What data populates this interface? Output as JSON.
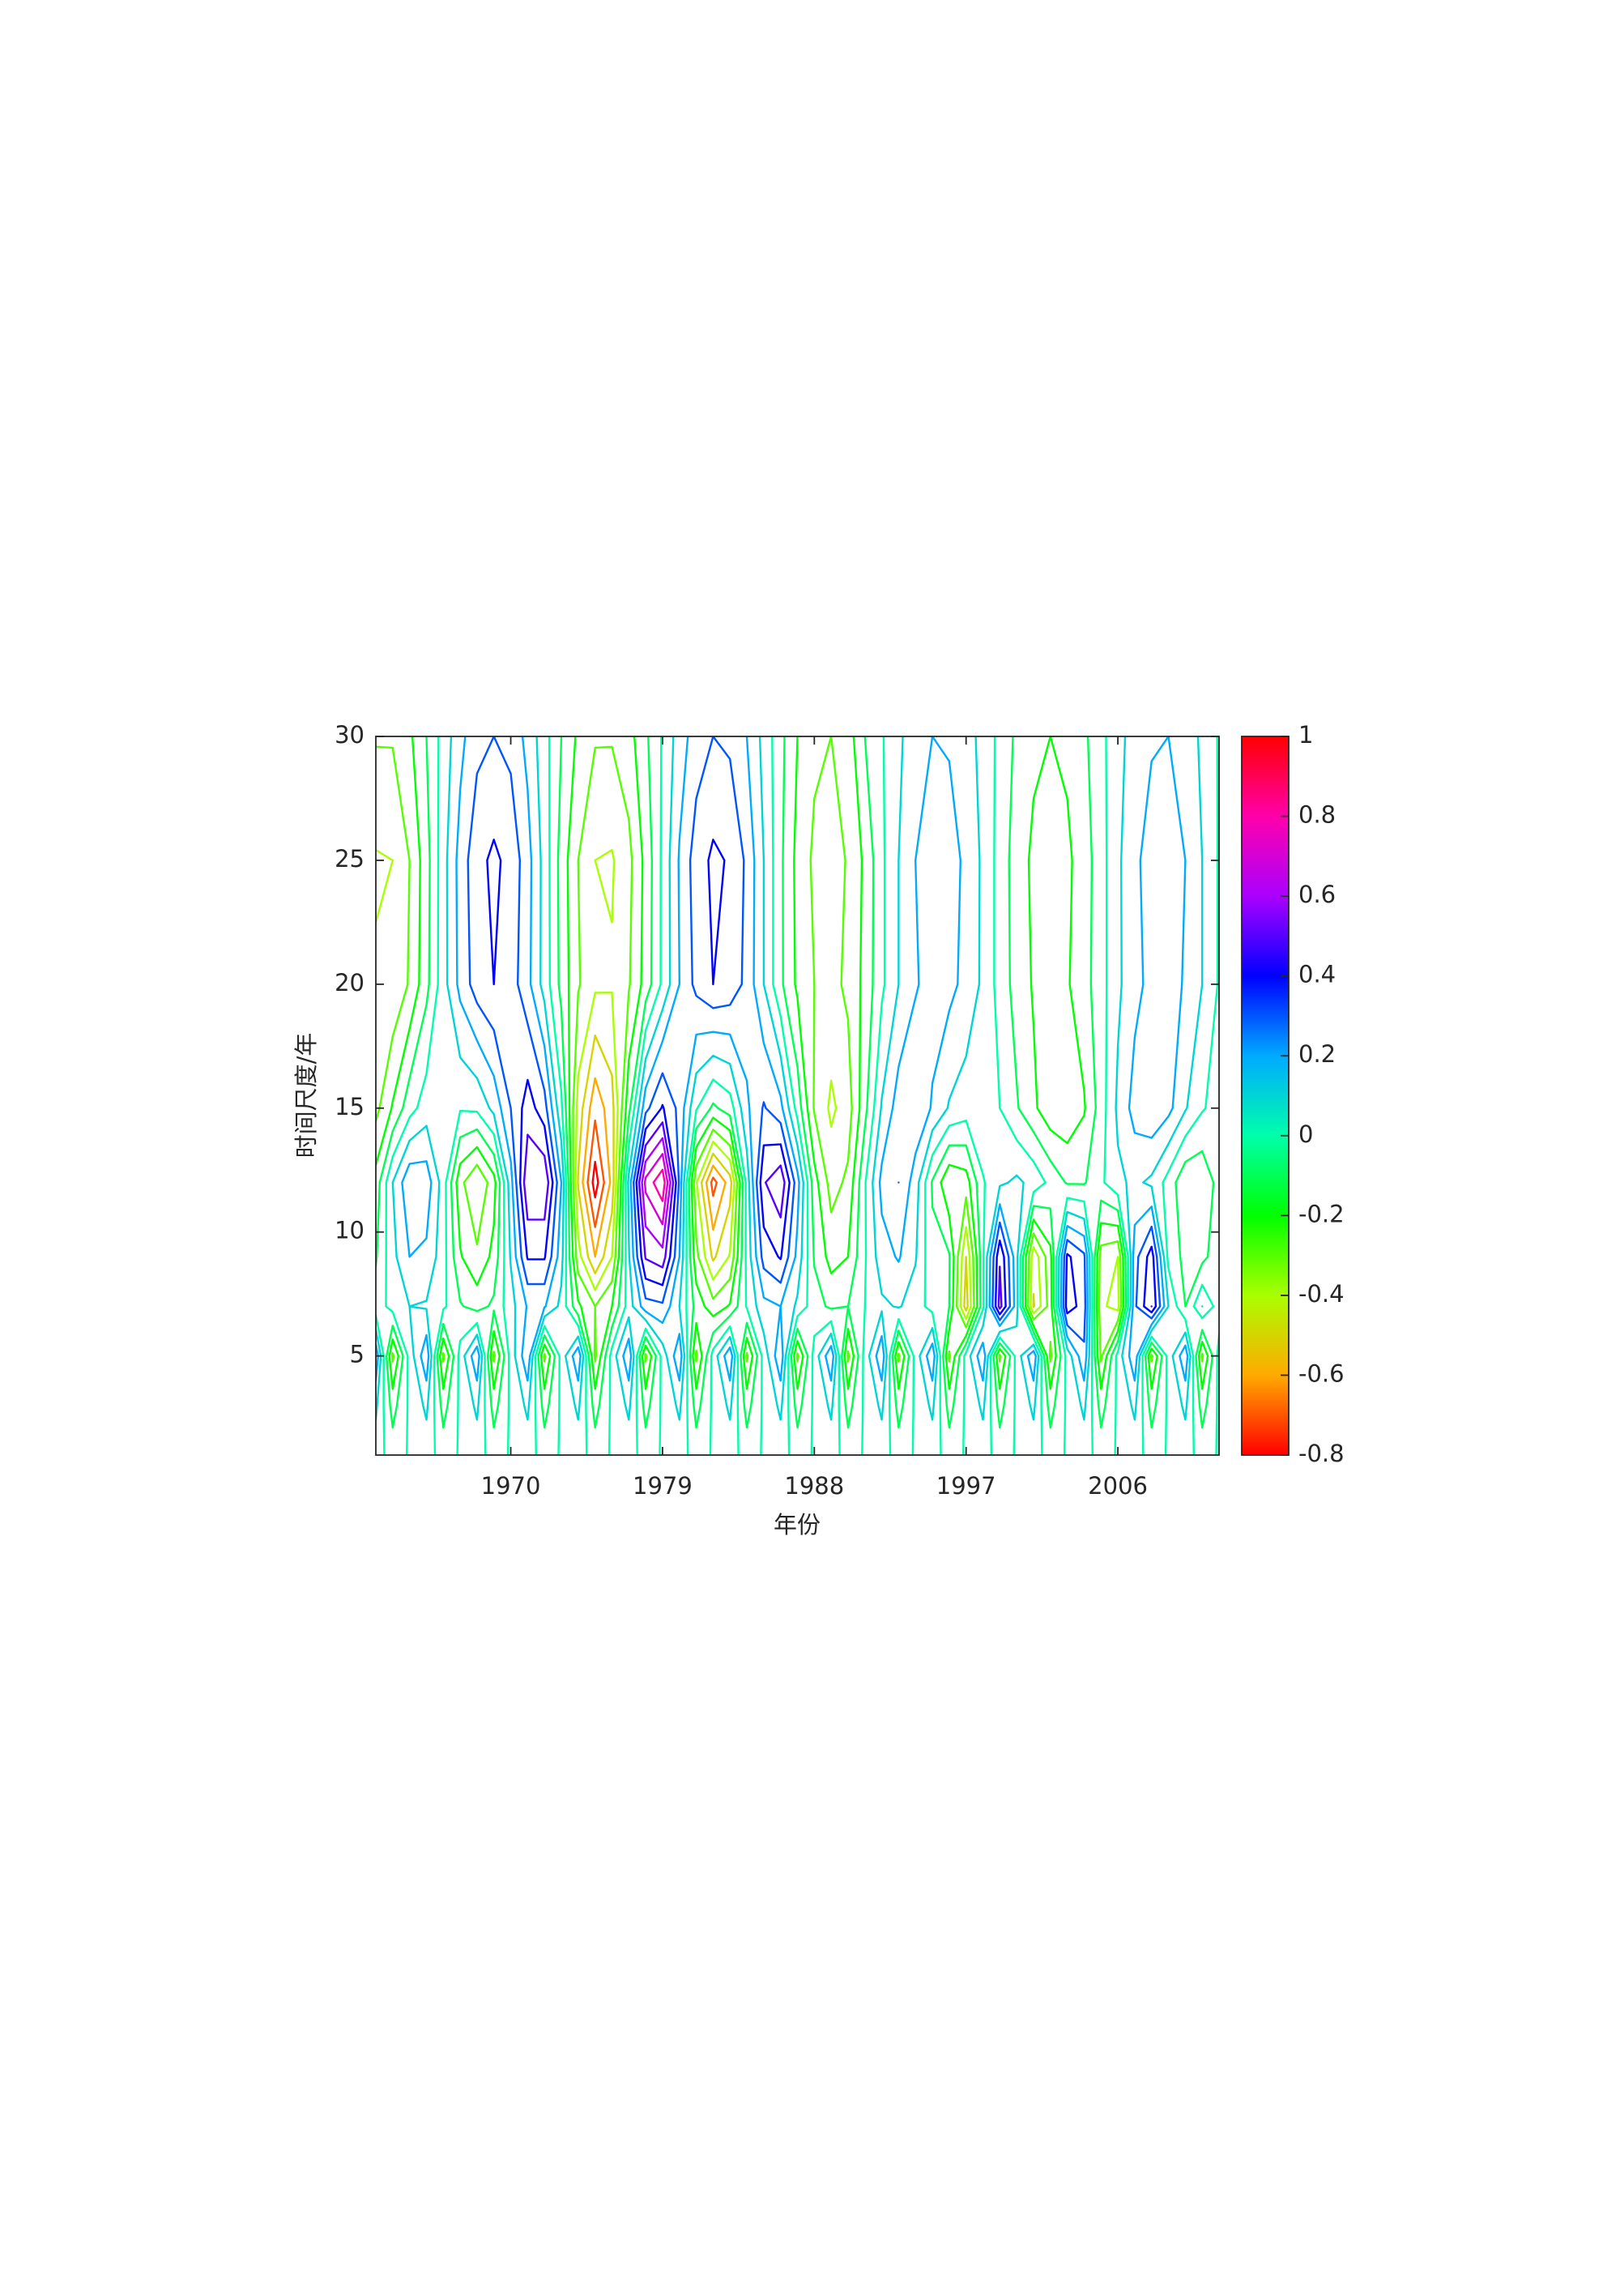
{
  "chart_data": {
    "type": "contour",
    "xlabel": "年份",
    "ylabel": "时间尺度/年",
    "xlim": [
      1962,
      2012
    ],
    "ylim": [
      1,
      30
    ],
    "xticks": [
      1970,
      1979,
      1988,
      1997,
      2006
    ],
    "yticks": [
      5,
      10,
      15,
      20,
      25,
      30
    ],
    "clim": [
      -0.8,
      1
    ],
    "colorbar_ticks": [
      -0.8,
      -0.6,
      -0.4,
      -0.2,
      0,
      0.2,
      0.4,
      0.6,
      0.8,
      1
    ],
    "colormap": [
      "#ff0000",
      "#ffaa00",
      "#aaff00",
      "#00ff00",
      "#00ffaa",
      "#00aaff",
      "#0000ff",
      "#aa00ff",
      "#ff00aa",
      "#ff0000"
    ],
    "levels": [
      -0.8,
      -0.7,
      -0.6,
      -0.5,
      -0.4,
      -0.3,
      -0.2,
      -0.1,
      0,
      0.1,
      0.2,
      0.3,
      0.4,
      0.5,
      0.6,
      0.7,
      0.8
    ],
    "x": [
      1962,
      1963,
      1964,
      1965,
      1966,
      1967,
      1968,
      1969,
      1970,
      1971,
      1972,
      1973,
      1974,
      1975,
      1976,
      1977,
      1978,
      1979,
      1980,
      1981,
      1982,
      1983,
      1984,
      1985,
      1986,
      1987,
      1988,
      1989,
      1990,
      1991,
      1992,
      1993,
      1994,
      1995,
      1996,
      1997,
      1998,
      1999,
      2000,
      2001,
      2002,
      2003,
      2004,
      2005,
      2006,
      2007,
      2008,
      2009,
      2010,
      2011,
      2012
    ],
    "y": [
      1,
      3,
      5,
      7,
      9,
      12,
      15,
      20,
      25,
      30
    ],
    "z": [
      [
        0.05,
        -0.05,
        0.01,
        0.05,
        -0.05,
        0.01,
        0.05,
        -0.05,
        0.01,
        0.05,
        -0.05,
        0.01,
        0.05,
        -0.05,
        0.01,
        0.05,
        -0.05,
        0.01,
        0.05,
        -0.05,
        0.01,
        0.05,
        -0.05,
        0.01,
        0.05,
        -0.05,
        0.01,
        0.05,
        -0.05,
        0.01,
        0.05,
        -0.05,
        0.01,
        0.05,
        -0.05,
        0.01,
        0.05,
        -0.05,
        0.01,
        0.05,
        -0.05,
        0.01,
        0.05,
        -0.05,
        0.01,
        0.05,
        -0.05,
        0.01,
        0.05,
        -0.05,
        0.01
      ],
      [
        0.12,
        -0.14,
        0.02,
        0.12,
        -0.14,
        0.02,
        0.12,
        -0.14,
        0.02,
        0.12,
        -0.14,
        0.02,
        0.12,
        -0.14,
        0.02,
        0.12,
        -0.14,
        0.02,
        0.12,
        -0.14,
        0.02,
        0.12,
        -0.14,
        0.02,
        0.12,
        -0.14,
        0.02,
        0.12,
        -0.14,
        0.02,
        0.12,
        -0.14,
        0.02,
        0.12,
        -0.14,
        0.02,
        0.12,
        -0.14,
        0.02,
        0.12,
        -0.14,
        0.02,
        0.12,
        -0.14,
        0.02,
        0.12,
        -0.14,
        0.02,
        0.12,
        -0.14,
        0.02
      ],
      [
        0.28,
        -0.32,
        0.04,
        0.28,
        -0.32,
        0.04,
        0.28,
        -0.32,
        0.04,
        0.28,
        -0.32,
        0.04,
        0.28,
        -0.32,
        0.04,
        0.28,
        -0.32,
        0.04,
        0.28,
        -0.32,
        0.04,
        0.28,
        -0.32,
        0.04,
        0.28,
        -0.32,
        0.04,
        0.28,
        -0.32,
        0.04,
        0.28,
        -0.32,
        0.04,
        0.28,
        -0.32,
        0.04,
        0.28,
        -0.32,
        0.04,
        0.28,
        -0.32,
        0.04,
        0.28,
        -0.32,
        0.04,
        0.28,
        -0.32,
        0.04,
        0.28,
        -0.32,
        0.04
      ],
      [
        -0.06,
        0.04,
        0.1,
        0.09,
        0.02,
        -0.09,
        -0.14,
        -0.08,
        0.06,
        0.21,
        0.21,
        0.07,
        -0.18,
        -0.3,
        -0.2,
        0.05,
        0.26,
        0.28,
        0.1,
        -0.14,
        -0.26,
        -0.19,
        0.01,
        0.17,
        0.2,
        0.08,
        -0.06,
        -0.12,
        -0.1,
        0.0,
        0.08,
        0.11,
        0.05,
        -0.04,
        -0.1,
        -0.55,
        -0.02,
        0.54,
        0.14,
        -0.51,
        -0.25,
        0.46,
        0.35,
        -0.38,
        -0.44,
        0.28,
        0.5,
        0.1,
        -0.1,
        0.1,
        -0.05
      ],
      [
        -0.11,
        0.07,
        0.2,
        0.18,
        0.04,
        -0.19,
        -0.28,
        -0.17,
        0.11,
        0.41,
        0.41,
        0.14,
        -0.36,
        -0.6,
        -0.4,
        0.09,
        0.51,
        0.56,
        0.2,
        -0.27,
        -0.52,
        -0.39,
        0.03,
        0.34,
        0.41,
        0.17,
        -0.11,
        -0.24,
        -0.2,
        -0.01,
        0.16,
        0.21,
        0.11,
        -0.08,
        -0.09,
        -0.5,
        -0.02,
        0.49,
        0.13,
        -0.47,
        -0.23,
        0.42,
        0.32,
        -0.35,
        -0.4,
        0.26,
        0.45,
        -0.03,
        -0.13,
        -0.13,
        -0.04
      ],
      [
        -0.16,
        0.1,
        0.28,
        0.26,
        0.05,
        -0.27,
        -0.4,
        -0.24,
        0.16,
        0.59,
        0.59,
        0.2,
        -0.51,
        -0.85,
        -0.57,
        0.13,
        0.73,
        0.88,
        0.28,
        -0.39,
        -0.74,
        -0.55,
        0.04,
        0.49,
        0.58,
        0.24,
        -0.16,
        -0.34,
        -0.28,
        -0.01,
        0.23,
        0.3,
        0.15,
        -0.11,
        -0.29,
        -0.25,
        -0.01,
        0.08,
        0.12,
        0.07,
        -0.03,
        -0.11,
        -0.11,
        -0.02,
        0.08,
        0.12,
        0.08,
        -0.04,
        -0.18,
        -0.18,
        -0.06
      ],
      [
        -0.33,
        -0.19,
        -0.04,
        0.05,
        0.07,
        0.01,
        0.02,
        0.13,
        0.3,
        0.45,
        0.34,
        0.02,
        -0.44,
        -0.67,
        -0.54,
        -0.13,
        0.27,
        0.41,
        0.27,
        0.01,
        -0.12,
        -0.05,
        0.18,
        0.31,
        0.23,
        -0.04,
        -0.31,
        -0.42,
        -0.35,
        -0.13,
        0.11,
        0.25,
        0.28,
        0.19,
        0.09,
        0.05,
        0.08,
        0.0,
        -0.09,
        -0.18,
        -0.27,
        -0.28,
        -0.21,
        -0.05,
        0.12,
        0.24,
        0.28,
        0.23,
        0.11,
        0.01,
        -0.04
      ],
      [
        -0.39,
        -0.38,
        -0.29,
        -0.13,
        0.06,
        0.23,
        0.35,
        0.4,
        0.35,
        0.23,
        0.06,
        -0.13,
        -0.29,
        -0.38,
        -0.39,
        -0.31,
        -0.16,
        0.02,
        0.2,
        0.33,
        0.4,
        0.37,
        0.27,
        0.1,
        -0.08,
        -0.22,
        -0.3,
        -0.33,
        -0.28,
        -0.17,
        -0.02,
        0.1,
        0.19,
        0.24,
        0.23,
        0.17,
        0.08,
        -0.04,
        -0.14,
        -0.21,
        -0.24,
        -0.21,
        -0.14,
        -0.04,
        0.08,
        0.17,
        0.23,
        0.24,
        0.19,
        0.1,
        -0.01
      ],
      [
        -0.41,
        -0.4,
        -0.3,
        -0.14,
        0.06,
        0.24,
        0.37,
        0.42,
        0.37,
        0.24,
        0.06,
        -0.14,
        -0.3,
        -0.4,
        -0.41,
        -0.33,
        -0.17,
        0.02,
        0.21,
        0.35,
        0.42,
        0.39,
        0.28,
        0.1,
        -0.08,
        -0.23,
        -0.32,
        -0.35,
        -0.29,
        -0.18,
        -0.02,
        0.1,
        0.2,
        0.25,
        0.24,
        0.18,
        0.08,
        -0.04,
        -0.15,
        -0.22,
        -0.25,
        -0.22,
        -0.15,
        -0.04,
        0.08,
        0.18,
        0.24,
        0.25,
        0.2,
        0.1,
        -0.01
      ],
      [
        -0.29,
        -0.29,
        -0.22,
        -0.1,
        0.04,
        0.17,
        0.27,
        0.3,
        0.27,
        0.17,
        0.04,
        -0.1,
        -0.22,
        -0.29,
        -0.29,
        -0.24,
        -0.12,
        0.01,
        0.15,
        0.25,
        0.3,
        0.28,
        0.2,
        0.07,
        -0.07,
        -0.2,
        -0.28,
        -0.3,
        -0.25,
        -0.1,
        -0.01,
        0.08,
        0.16,
        0.2,
        0.19,
        0.14,
        0.07,
        -0.03,
        -0.12,
        -0.18,
        -0.2,
        -0.18,
        -0.12,
        -0.03,
        0.07,
        0.14,
        0.19,
        0.2,
        0.16,
        0.08,
        -0.01
      ]
    ]
  }
}
